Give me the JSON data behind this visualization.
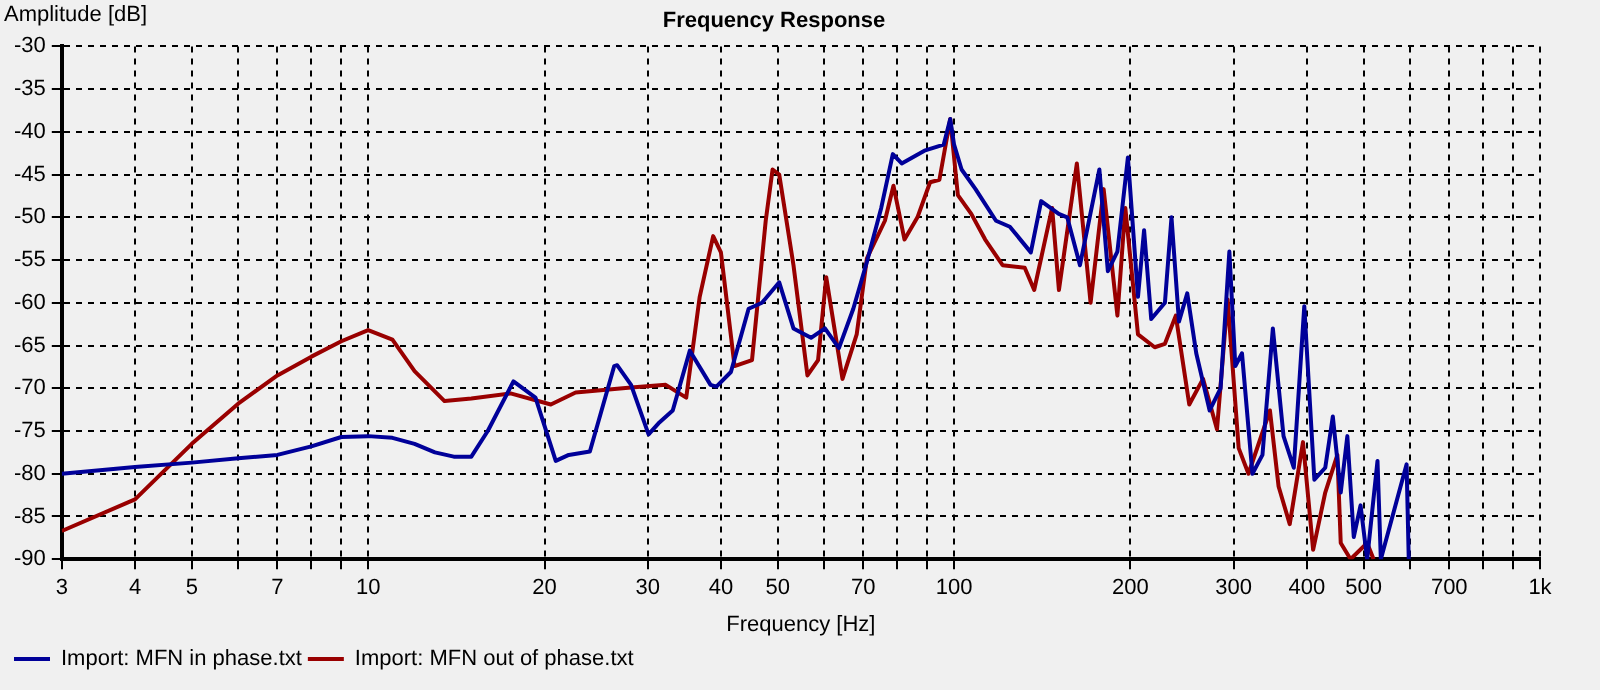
{
  "chart_data": {
    "type": "line",
    "title": "Frequency Response",
    "xlabel": "Frequency [Hz]",
    "ylabel": "Amplitude [dB]",
    "log": "x",
    "grid": true,
    "legend": "bottom left",
    "xlim": [
      3,
      1000
    ],
    "ylim": [
      -90,
      -30
    ],
    "xticks": [
      3,
      4,
      5,
      {
        "value": 6,
        "label": null
      },
      7,
      {
        "value": 8,
        "label": null
      },
      {
        "value": 9,
        "label": null
      },
      10,
      20,
      30,
      40,
      50,
      {
        "value": 60,
        "label": null
      },
      70,
      {
        "value": 80,
        "label": null
      },
      {
        "value": 90,
        "label": null
      },
      100,
      200,
      300,
      400,
      500,
      {
        "value": 600,
        "label": null
      },
      700,
      {
        "value": 800,
        "label": null
      },
      {
        "value": 900,
        "label": null
      },
      {
        "value": 1000,
        "label": "1k"
      }
    ],
    "yticks": [
      -90,
      -85,
      -80,
      -75,
      -70,
      -65,
      -60,
      -55,
      -50,
      -45,
      -40,
      -35,
      -30
    ],
    "series": [
      {
        "name": "Import: MFN in phase.txt",
        "color": "#000099",
        "x": [
          3,
          4,
          5,
          6,
          7,
          8,
          9,
          10,
          11,
          12,
          13,
          14,
          15,
          16,
          17.7,
          19.3,
          20.9,
          22,
          23.9,
          26.3,
          26.6,
          28.1,
          30.1,
          31.3,
          33.1,
          35.4,
          38.4,
          39.3,
          41.6,
          44.6,
          47,
          50.3,
          53.2,
          57,
          60.2,
          63.6,
          67.3,
          71,
          75.1,
          78.6,
          81.4,
          89,
          96,
          98.5,
          100,
          103,
          108.8,
          117.9,
          124.5,
          135.2,
          140.8,
          150.9,
          156,
          164,
          177,
          183,
          190,
          198,
          206,
          211,
          217,
          229,
          235,
          242,
          250,
          259,
          273,
          285,
          295,
          302,
          310,
          323,
          336,
          350,
          365,
          380,
          396,
          412,
          430,
          443,
          457,
          469,
          481,
          494,
          507,
          528,
          535,
          592,
          597
        ],
        "values": [
          -80,
          -79.2,
          -78.7,
          -78.2,
          -77.8,
          -76.8,
          -75.7,
          -75.6,
          -75.8,
          -76.5,
          -77.5,
          -78,
          -78,
          -75,
          -69.2,
          -71.1,
          -78.5,
          -77.8,
          -77.4,
          -67.4,
          -67.3,
          -69.6,
          -75.4,
          -74.1,
          -72.6,
          -65.6,
          -69.6,
          -69.8,
          -68.1,
          -60.7,
          -60,
          -57.6,
          -63,
          -64.1,
          -63,
          -65.3,
          -60.7,
          -55.2,
          -48.9,
          -42.6,
          -43.7,
          -42.2,
          -41.5,
          -38.5,
          -41.5,
          -44.4,
          -46.7,
          -50.4,
          -51.1,
          -54.1,
          -48.1,
          -49.6,
          -50,
          -55.6,
          -44.4,
          -56.3,
          -54,
          -43,
          -59.3,
          -51.5,
          -61.9,
          -60,
          -50,
          -62.2,
          -58.9,
          -65.9,
          -72.6,
          -70,
          -54,
          -67.4,
          -65.9,
          -80,
          -77.8,
          -63,
          -75.6,
          -79.3,
          -60.4,
          -80.7,
          -79.3,
          -73.3,
          -82.2,
          -75.6,
          -87.4,
          -83.7,
          -90,
          -78.5,
          -90,
          -78.9,
          -90
        ]
      },
      {
        "name": "Import: MFN out of phase.txt",
        "color": "#990000",
        "x": [
          3,
          4,
          5,
          6,
          7,
          8,
          9,
          10,
          11,
          12,
          13.5,
          15,
          17.5,
          20.5,
          22.6,
          28.1,
          32.2,
          34.9,
          36.8,
          38.8,
          40,
          42.2,
          45.2,
          47.7,
          49,
          50.3,
          53.2,
          56.2,
          58.6,
          60.5,
          64.5,
          68.2,
          71,
          76.2,
          78.8,
          82.3,
          86.6,
          91,
          94.4,
          98.5,
          101.5,
          107,
          113,
          121,
          132,
          137,
          147,
          151,
          162,
          171,
          180,
          190,
          196,
          206,
          220,
          229,
          239,
          252,
          266,
          281,
          293,
          306,
          318,
          346,
          358,
          374,
          394,
          410,
          430,
          451,
          457,
          475,
          507,
          520
        ],
        "values": [
          -86.7,
          -83,
          -76.5,
          -71.8,
          -68.5,
          -66.3,
          -64.5,
          -63.2,
          -64.3,
          -68,
          -71.5,
          -71.2,
          -70.6,
          -71.9,
          -70.5,
          -69.9,
          -69.6,
          -71.1,
          -59.3,
          -52.2,
          -54.1,
          -67.4,
          -66.7,
          -50.4,
          -44.4,
          -45,
          -55.6,
          -68.5,
          -66.7,
          -57,
          -68.9,
          -63.7,
          -54.8,
          -50.4,
          -46.3,
          -52.6,
          -50,
          -45.9,
          -45.6,
          -38.5,
          -47.4,
          -49.6,
          -52.6,
          -55.6,
          -55.9,
          -58.5,
          -48.9,
          -58.5,
          -43.7,
          -60,
          -46.7,
          -61.5,
          -48.9,
          -63.7,
          -65.2,
          -64.8,
          -61.5,
          -71.9,
          -68.9,
          -74.8,
          -59.6,
          -77,
          -80,
          -72.6,
          -81.5,
          -85.9,
          -76.3,
          -88.9,
          -82.2,
          -77.8,
          -88.1,
          -90,
          -88.1,
          -90
        ]
      }
    ]
  }
}
